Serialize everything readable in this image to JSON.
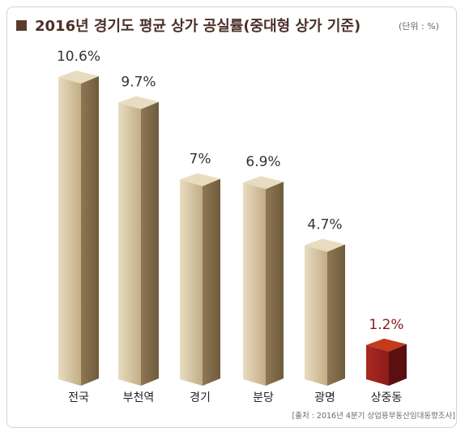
{
  "title": "2016년  경기도 평균 상가 공실률(중대형 상가 기준)",
  "unit": "(단위 : %)",
  "source": "[출처 : 2016년 4분기 상업용부동산임대동향조사]",
  "colors": {
    "bar_front": "#c2ad85",
    "bar_side": "#8e7754",
    "bar_top": "#e8dcc0",
    "highlight_front": "#8c1a1a",
    "highlight_side": "#5c0f0f",
    "highlight_top": "#c43a1c",
    "label_normal": "#333333",
    "label_highlight": "#8c1a1a"
  },
  "chart_data": {
    "type": "bar",
    "categories": [
      "전국",
      "부천역",
      "경기",
      "분당",
      "광명",
      "상중동"
    ],
    "values": [
      10.6,
      9.7,
      7,
      6.9,
      4.7,
      1.2
    ],
    "value_labels": [
      "10.6%",
      "9.7%",
      "7%",
      "6.9%",
      "4.7%",
      "1.2%"
    ],
    "highlight_index": 5,
    "ylim": [
      0,
      10.6
    ],
    "grid": false,
    "legend": "none"
  }
}
